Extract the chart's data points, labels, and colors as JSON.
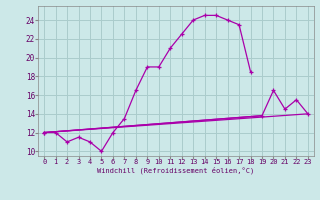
{
  "title": "",
  "xlabel": "Windchill (Refroidissement éolien,°C)",
  "bg_color": "#cce8e8",
  "grid_color": "#aacccc",
  "line_color": "#aa00aa",
  "xlim": [
    -0.5,
    23.5
  ],
  "ylim": [
    9.5,
    25.5
  ],
  "xticks": [
    0,
    1,
    2,
    3,
    4,
    5,
    6,
    7,
    8,
    9,
    10,
    11,
    12,
    13,
    14,
    15,
    16,
    17,
    18,
    19,
    20,
    21,
    22,
    23
  ],
  "yticks": [
    10,
    12,
    14,
    16,
    18,
    20,
    22,
    24
  ],
  "curve1_x": [
    0,
    1,
    2,
    3,
    4,
    5,
    6,
    7,
    8,
    9,
    10,
    11,
    12,
    13,
    14,
    15,
    16,
    17,
    18
  ],
  "curve1_y": [
    12,
    12,
    11,
    11.5,
    11,
    10,
    12,
    13.5,
    16.5,
    19,
    19,
    21,
    22.5,
    24,
    24.5,
    24.5,
    24,
    23.5,
    18.5
  ],
  "curve2_x": [
    0,
    23
  ],
  "curve2_y": [
    12,
    14
  ],
  "curve3_x": [
    0,
    19,
    20,
    21,
    22,
    23
  ],
  "curve3_y": [
    12,
    13.8,
    16.5,
    14.5,
    15.5,
    14
  ],
  "curve4_x": [
    0,
    19
  ],
  "curve4_y": [
    12,
    13.8
  ]
}
